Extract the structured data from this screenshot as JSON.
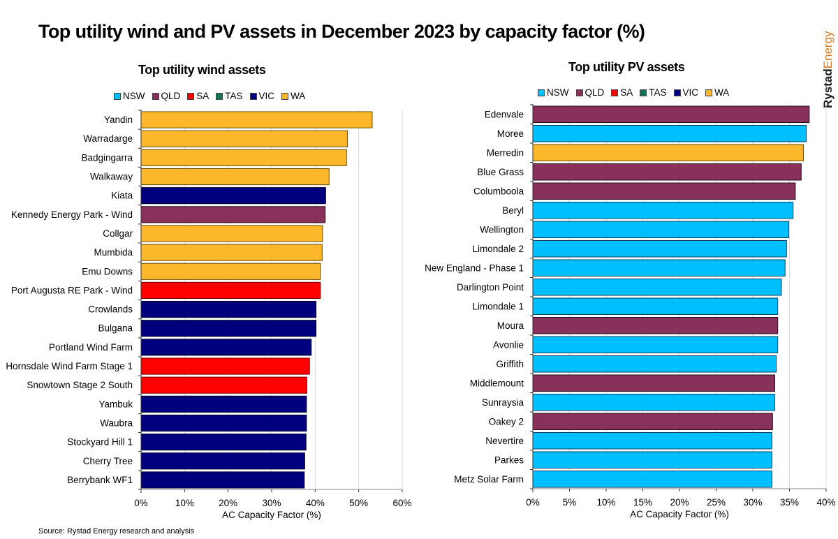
{
  "page": {
    "title": "Top utility wind and PV assets in December 2023 by capacity factor (%)",
    "brand": {
      "part1": "Rystad",
      "part2": "Energy",
      "color1": "#1a1a1a",
      "color2": "#e07b24"
    },
    "source": "Source: Rystad Energy research and analysis"
  },
  "legend": [
    {
      "label": "NSW",
      "color": "#00bfff"
    },
    {
      "label": "QLD",
      "color": "#87315b"
    },
    {
      "label": "SA",
      "color": "#ff0000"
    },
    {
      "label": "TAS",
      "color": "#13735a"
    },
    {
      "label": "VIC",
      "color": "#00007f"
    },
    {
      "label": "WA",
      "color": "#fdb72a"
    }
  ],
  "chart_data": [
    {
      "type": "bar",
      "orientation": "horizontal",
      "title": "Top utility wind assets",
      "xlabel": "AC Capacity Factor (%)",
      "ylabel": "",
      "xlim": [
        0,
        60
      ],
      "xticks": [
        0,
        10,
        20,
        30,
        40,
        50,
        60
      ],
      "xtick_labels": [
        "0%",
        "10%",
        "20%",
        "30%",
        "40%",
        "50%",
        "60%"
      ],
      "grid": "vertical",
      "legend_position": "top",
      "categories": [
        "Yandin",
        "Warradarge",
        "Badgingarra",
        "Walkaway",
        "Kiata",
        "Kennedy Energy Park - Wind",
        "Collgar",
        "Mumbida",
        "Emu Downs",
        "Port Augusta RE Park - Wind",
        "Crowlands",
        "Bulgana",
        "Portland Wind Farm",
        "Hornsdale Wind Farm Stage 1",
        "Snowtown Stage 2 South",
        "Yambuk",
        "Waubra",
        "Stockyard Hill 1",
        "Cherry Tree",
        "Berrybank WF1"
      ],
      "values": [
        53.1,
        47.4,
        47.2,
        43.2,
        42.4,
        42.3,
        41.7,
        41.6,
        41.2,
        41.2,
        40.2,
        40.2,
        39.1,
        38.7,
        38.1,
        38.0,
        38.0,
        37.9,
        37.6,
        37.5
      ],
      "states": [
        "WA",
        "WA",
        "WA",
        "WA",
        "VIC",
        "QLD",
        "WA",
        "WA",
        "WA",
        "SA",
        "VIC",
        "VIC",
        "VIC",
        "SA",
        "SA",
        "VIC",
        "VIC",
        "VIC",
        "VIC",
        "VIC"
      ]
    },
    {
      "type": "bar",
      "orientation": "horizontal",
      "title": "Top utility PV assets",
      "xlabel": "AC Capacity Factor (%)",
      "ylabel": "",
      "xlim": [
        0,
        40
      ],
      "xticks": [
        0,
        5,
        10,
        15,
        20,
        25,
        30,
        35,
        40
      ],
      "xtick_labels": [
        "0%",
        "5%",
        "10%",
        "15%",
        "20%",
        "25%",
        "30%",
        "35%",
        "40%"
      ],
      "grid": "vertical",
      "legend_position": "top",
      "categories": [
        "Edenvale",
        "Moree",
        "Merredin",
        "Blue Grass",
        "Columboola",
        "Beryl",
        "Wellington",
        "Limondale 2",
        "New England - Phase 1",
        "Darlington Point",
        "Limondale 1",
        "Moura",
        "Avonlie",
        "Griffith",
        "Middlemount",
        "Sunraysia",
        "Oakey 2",
        "Nevertire",
        "Parkes",
        "Metz Solar Farm"
      ],
      "values": [
        37.7,
        37.3,
        36.9,
        36.6,
        35.8,
        35.5,
        34.9,
        34.6,
        34.4,
        33.9,
        33.4,
        33.4,
        33.4,
        33.2,
        33.0,
        33.0,
        32.7,
        32.6,
        32.6,
        32.6
      ],
      "states": [
        "QLD",
        "NSW",
        "WA",
        "QLD",
        "QLD",
        "NSW",
        "NSW",
        "NSW",
        "NSW",
        "NSW",
        "NSW",
        "QLD",
        "NSW",
        "NSW",
        "QLD",
        "NSW",
        "QLD",
        "NSW",
        "NSW",
        "NSW"
      ]
    }
  ]
}
